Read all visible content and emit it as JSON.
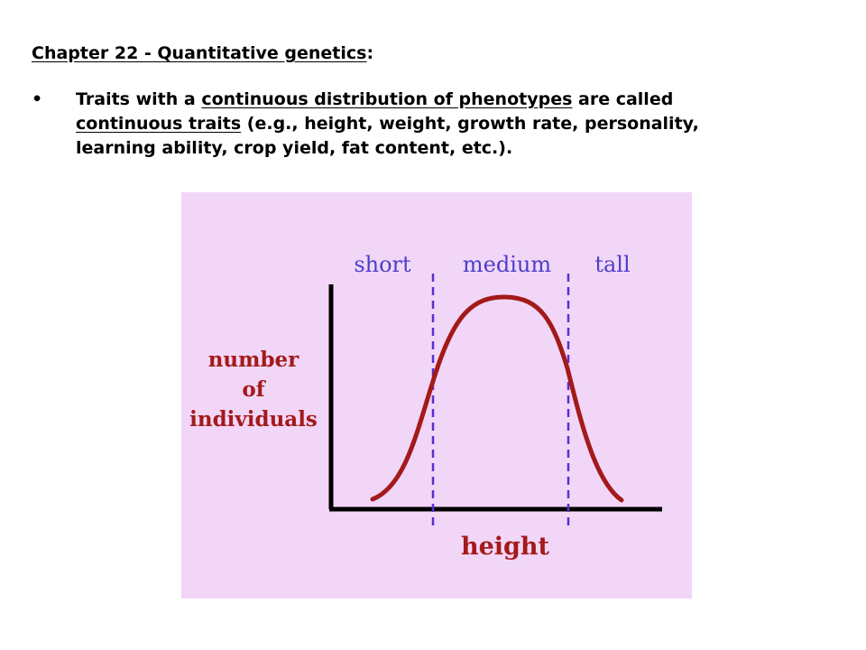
{
  "slide": {
    "title_main": "Chapter 22 - Quantitative genetics",
    "title_colon": ":",
    "bullet_symbol": "•",
    "bullet_line1_a": "Traits with a ",
    "bullet_line1_b": "continuous distribution of phenotypes",
    "bullet_line1_c": " are called",
    "bullet_line2_a": "continuous traits",
    "bullet_line2_b": " (e.g., height, weight, growth rate, personality,",
    "bullet_line3": "learning ability, crop yield, fat content, etc.)."
  },
  "figure": {
    "region_labels": [
      "short",
      "medium",
      "tall"
    ],
    "y_label_lines": [
      "number",
      "of",
      "individuals"
    ],
    "x_label": "height",
    "colors": {
      "background": "#f2d6f7",
      "curve": "#a31a1a",
      "region_label": "#4b3fc9",
      "axis_label": "#a31a1a",
      "divider": "#5a2fd1",
      "axes": "#000000"
    }
  }
}
